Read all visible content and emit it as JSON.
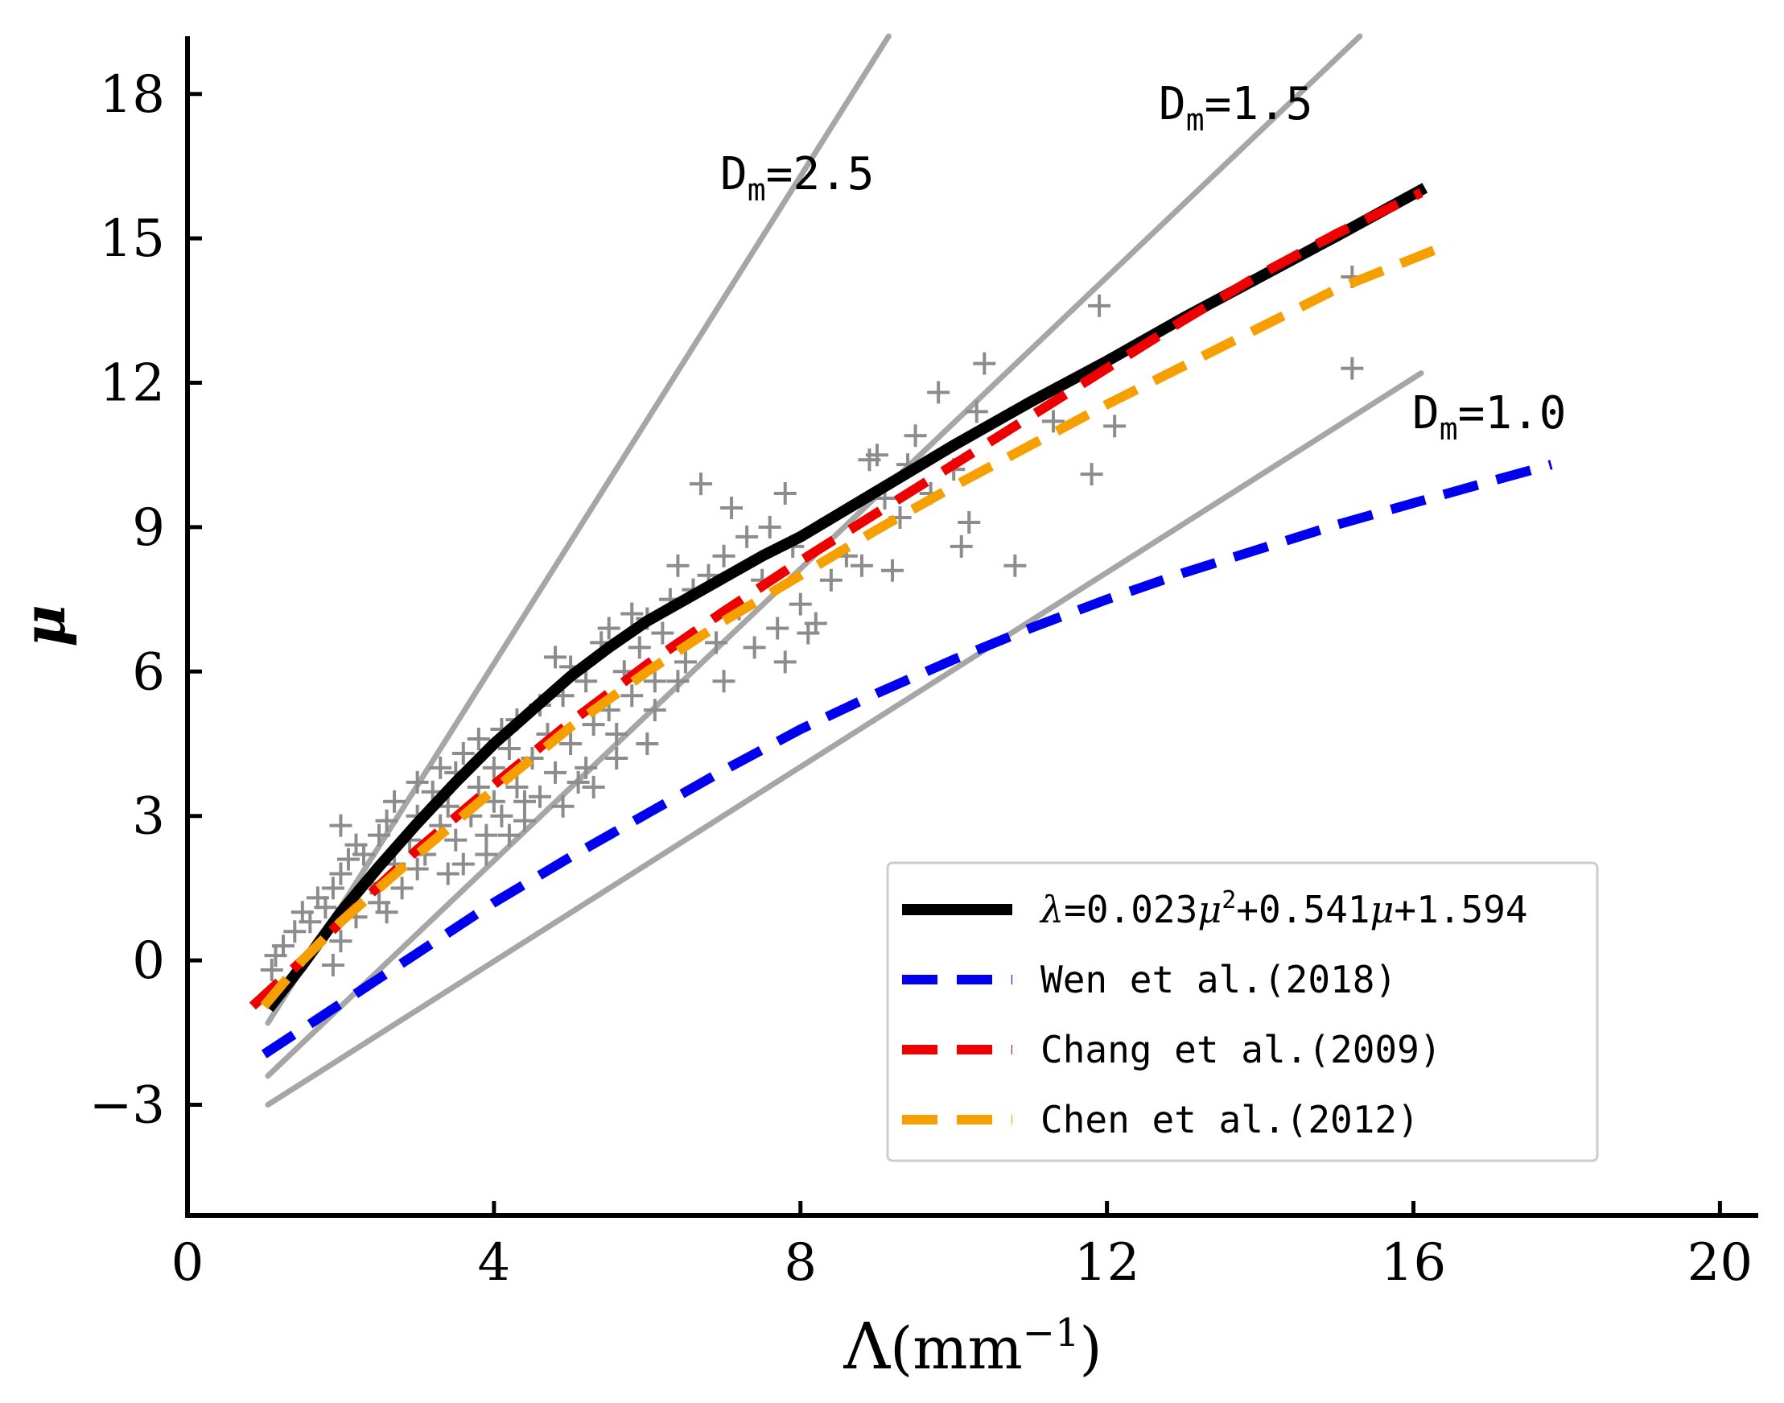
{
  "chart_data": {
    "type": "scatter",
    "title": "",
    "xlabel": {
      "main": "Λ",
      "unit": "(mm",
      "exp": "−1",
      "close": ")"
    },
    "ylabel": "μ",
    "xlim": [
      0,
      20.5
    ],
    "ylim": [
      -5.3,
      19.2
    ],
    "xticks": [
      0,
      4,
      8,
      12,
      16,
      20
    ],
    "yticks": [
      -3,
      0,
      3,
      6,
      9,
      12,
      15,
      18
    ],
    "tick_labels_x": [
      "0",
      "4",
      "8",
      "12",
      "16",
      "20"
    ],
    "tick_labels_y": [
      "−3",
      "0",
      "3",
      "6",
      "9",
      "12",
      "15",
      "18"
    ],
    "grid": false,
    "legend_position": "lower-right",
    "scatter": {
      "name": "observations",
      "marker": "plus",
      "color": "#8c8c8c",
      "points": [
        [
          1.1,
          -0.2
        ],
        [
          1.15,
          0.1
        ],
        [
          1.25,
          0.3
        ],
        [
          1.4,
          0.6
        ],
        [
          1.5,
          1.0
        ],
        [
          1.6,
          0.8
        ],
        [
          1.7,
          1.3
        ],
        [
          1.8,
          1.1
        ],
        [
          1.9,
          -0.1
        ],
        [
          2.0,
          0.4
        ],
        [
          1.9,
          1.5
        ],
        [
          2.0,
          1.8
        ],
        [
          2.1,
          2.1
        ],
        [
          2.2,
          2.4
        ],
        [
          2.0,
          2.8
        ],
        [
          2.3,
          2.2
        ],
        [
          2.4,
          1.6
        ],
        [
          2.5,
          1.2
        ],
        [
          2.5,
          2.6
        ],
        [
          2.6,
          2.9
        ],
        [
          2.7,
          3.3
        ],
        [
          2.7,
          2.0
        ],
        [
          2.8,
          1.5
        ],
        [
          2.9,
          2.5
        ],
        [
          3.0,
          3.0
        ],
        [
          3.0,
          3.7
        ],
        [
          3.1,
          2.2
        ],
        [
          3.2,
          3.5
        ],
        [
          3.3,
          2.8
        ],
        [
          3.3,
          4.0
        ],
        [
          3.4,
          3.2
        ],
        [
          3.5,
          2.5
        ],
        [
          3.5,
          3.9
        ],
        [
          3.6,
          4.3
        ],
        [
          3.7,
          3.0
        ],
        [
          3.8,
          3.6
        ],
        [
          3.8,
          4.6
        ],
        [
          3.9,
          2.6
        ],
        [
          4.0,
          3.3
        ],
        [
          4.0,
          4.0
        ],
        [
          4.1,
          4.8
        ],
        [
          4.1,
          3.0
        ],
        [
          4.2,
          4.4
        ],
        [
          4.3,
          3.6
        ],
        [
          4.3,
          5.0
        ],
        [
          4.4,
          2.9
        ],
        [
          4.5,
          4.2
        ],
        [
          4.6,
          5.3
        ],
        [
          4.6,
          3.4
        ],
        [
          4.7,
          4.7
        ],
        [
          4.8,
          6.3
        ],
        [
          4.8,
          3.9
        ],
        [
          4.9,
          5.5
        ],
        [
          5.0,
          4.5
        ],
        [
          5.0,
          6.1
        ],
        [
          5.1,
          3.7
        ],
        [
          5.2,
          5.8
        ],
        [
          5.3,
          4.9
        ],
        [
          5.4,
          6.6
        ],
        [
          5.5,
          5.2
        ],
        [
          5.5,
          6.9
        ],
        [
          5.6,
          4.7
        ],
        [
          5.7,
          6.0
        ],
        [
          5.8,
          7.2
        ],
        [
          5.8,
          5.5
        ],
        [
          5.9,
          6.5
        ],
        [
          6.0,
          7.1
        ],
        [
          6.0,
          4.5
        ],
        [
          6.1,
          5.8
        ],
        [
          6.2,
          6.8
        ],
        [
          6.3,
          7.5
        ],
        [
          6.4,
          8.2
        ],
        [
          6.5,
          6.2
        ],
        [
          6.6,
          7.7
        ],
        [
          6.7,
          9.9
        ],
        [
          6.8,
          8.0
        ],
        [
          6.9,
          6.6
        ],
        [
          7.0,
          8.4
        ],
        [
          7.0,
          5.8
        ],
        [
          7.1,
          9.4
        ],
        [
          7.2,
          7.3
        ],
        [
          7.3,
          8.8
        ],
        [
          7.4,
          6.5
        ],
        [
          7.5,
          7.9
        ],
        [
          7.6,
          9.0
        ],
        [
          7.7,
          6.9
        ],
        [
          7.8,
          9.7
        ],
        [
          7.8,
          6.2
        ],
        [
          7.9,
          8.6
        ],
        [
          8.0,
          7.4
        ],
        [
          8.1,
          6.8
        ],
        [
          8.2,
          7.0
        ],
        [
          8.4,
          7.9
        ],
        [
          8.6,
          8.4
        ],
        [
          8.8,
          8.2
        ],
        [
          8.9,
          10.4
        ],
        [
          9.0,
          10.5
        ],
        [
          9.1,
          9.6
        ],
        [
          9.2,
          8.1
        ],
        [
          9.3,
          9.2
        ],
        [
          9.4,
          10.3
        ],
        [
          9.5,
          10.9
        ],
        [
          9.7,
          9.7
        ],
        [
          9.8,
          11.8
        ],
        [
          10.0,
          10.2
        ],
        [
          10.1,
          8.6
        ],
        [
          10.2,
          9.1
        ],
        [
          10.3,
          11.4
        ],
        [
          10.4,
          12.4
        ],
        [
          10.8,
          8.2
        ],
        [
          11.3,
          11.2
        ],
        [
          11.8,
          10.1
        ],
        [
          11.9,
          13.6
        ],
        [
          12.1,
          11.1
        ],
        [
          15.2,
          14.2
        ],
        [
          15.2,
          12.3
        ],
        [
          2.2,
          0.9
        ],
        [
          2.6,
          1.0
        ],
        [
          3.4,
          1.8
        ],
        [
          3.9,
          2.2
        ],
        [
          4.4,
          3.3
        ],
        [
          4.9,
          3.2
        ],
        [
          5.3,
          3.6
        ],
        [
          5.6,
          4.2
        ],
        [
          4.2,
          2.6
        ],
        [
          3.6,
          2.0
        ],
        [
          3.0,
          1.9
        ],
        [
          5.2,
          4.0
        ],
        [
          6.1,
          5.2
        ],
        [
          6.4,
          5.8
        ]
      ]
    },
    "lines": [
      {
        "name": "D_m=2.5",
        "label_main": "D",
        "label_sub": "m",
        "label_tail": "=2.5",
        "color": "#a6a6a6",
        "style": "solid",
        "width": 7,
        "x": [
          1.05,
          9.15
        ],
        "y": [
          -1.3,
          19.2
        ]
      },
      {
        "name": "D_m=1.5",
        "label_main": "D",
        "label_sub": "m",
        "label_tail": "=1.5",
        "color": "#a6a6a6",
        "style": "solid",
        "width": 7,
        "x": [
          1.05,
          15.3
        ],
        "y": [
          -2.4,
          19.2
        ]
      },
      {
        "name": "D_m=1.0",
        "label_main": "D",
        "label_sub": "m",
        "label_tail": "=1.0",
        "color": "#a6a6a6",
        "style": "solid",
        "width": 7,
        "x": [
          1.05,
          16.1
        ],
        "y": [
          -3.0,
          12.2
        ]
      }
    ],
    "series": [
      {
        "name": "λ=0.023μ²+0.541μ+1.594",
        "legend_parts": [
          "λ",
          "=0.023",
          "μ",
          "2",
          "+0.541",
          "μ",
          "+1.594"
        ],
        "color": "#000000",
        "style": "solid",
        "width": 14,
        "x": [
          1.06,
          1.5,
          2.0,
          2.5,
          3.0,
          3.5,
          4.0,
          4.5,
          5.0,
          5.5,
          6.0,
          6.5,
          7.0,
          7.5,
          8.0,
          9.0,
          10.0,
          11.0,
          12.0,
          13.0,
          14.0,
          15.0,
          16.15
        ],
        "y": [
          -1.0,
          -0.1,
          1.0,
          1.95,
          2.85,
          3.7,
          4.5,
          5.2,
          5.9,
          6.5,
          7.05,
          7.5,
          7.95,
          8.4,
          8.8,
          9.75,
          10.7,
          11.6,
          12.45,
          13.35,
          14.2,
          15.05,
          16.05
        ]
      },
      {
        "name": "Wen et al.(2018)",
        "color": "#0000ee",
        "style": "dashed",
        "width": 12,
        "x": [
          1.0,
          2.0,
          3.0,
          4.0,
          5.0,
          6.0,
          7.0,
          8.0,
          9.0,
          10.0,
          11.0,
          12.0,
          13.0,
          14.0,
          15.0,
          16.0,
          17.0,
          17.8
        ],
        "y": [
          -1.95,
          -0.9,
          0.15,
          1.2,
          2.15,
          3.05,
          3.95,
          4.8,
          5.55,
          6.25,
          6.9,
          7.5,
          8.05,
          8.55,
          9.05,
          9.5,
          9.95,
          10.3
        ]
      },
      {
        "name": "Chang et al.(2009)",
        "color": "#ee0000",
        "style": "dashed",
        "width": 12,
        "x": [
          0.85,
          1.5,
          2.0,
          3.0,
          4.0,
          5.0,
          6.0,
          7.0,
          8.0,
          9.0,
          10.0,
          11.0,
          12.0,
          13.0,
          14.0,
          15.0,
          16.1
        ],
        "y": [
          -0.95,
          0.0,
          0.8,
          2.3,
          3.65,
          4.95,
          6.15,
          7.25,
          8.3,
          9.3,
          10.3,
          11.3,
          12.3,
          13.3,
          14.25,
          15.1,
          15.95
        ]
      },
      {
        "name": "Chen et al.(2012)",
        "color": "#f5a000",
        "style": "dashed",
        "width": 12,
        "x": [
          1.0,
          1.5,
          2.0,
          3.0,
          4.0,
          5.0,
          6.0,
          7.0,
          8.0,
          9.0,
          10.0,
          11.0,
          12.0,
          13.0,
          14.0,
          15.0,
          16.5
        ],
        "y": [
          -0.95,
          0.0,
          0.8,
          2.2,
          3.55,
          4.85,
          6.0,
          7.05,
          8.0,
          8.95,
          9.85,
          10.7,
          11.55,
          12.35,
          13.15,
          13.95,
          14.9
        ]
      }
    ]
  }
}
